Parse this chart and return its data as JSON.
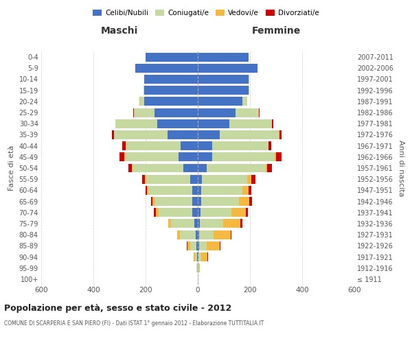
{
  "age_groups": [
    "100+",
    "95-99",
    "90-94",
    "85-89",
    "80-84",
    "75-79",
    "70-74",
    "65-69",
    "60-64",
    "55-59",
    "50-54",
    "45-49",
    "40-44",
    "35-39",
    "30-34",
    "25-29",
    "20-24",
    "15-19",
    "10-14",
    "5-9",
    "0-4"
  ],
  "birth_years": [
    "≤ 1911",
    "1912-1916",
    "1917-1921",
    "1922-1926",
    "1927-1931",
    "1932-1936",
    "1937-1941",
    "1942-1946",
    "1947-1951",
    "1952-1956",
    "1957-1961",
    "1962-1966",
    "1967-1971",
    "1972-1976",
    "1977-1981",
    "1982-1986",
    "1987-1991",
    "1992-1996",
    "1997-2001",
    "2002-2006",
    "2007-2011"
  ],
  "maschi": {
    "celibi": [
      0,
      1,
      2,
      5,
      8,
      12,
      20,
      20,
      20,
      28,
      55,
      75,
      65,
      115,
      155,
      165,
      205,
      205,
      205,
      240,
      200
    ],
    "coniugati": [
      1,
      3,
      8,
      25,
      60,
      90,
      130,
      145,
      170,
      170,
      195,
      205,
      210,
      205,
      160,
      80,
      15,
      2,
      0,
      0,
      0
    ],
    "vedovi": [
      0,
      1,
      5,
      10,
      10,
      10,
      10,
      8,
      5,
      5,
      3,
      2,
      2,
      2,
      0,
      0,
      5,
      0,
      0,
      0,
      0
    ],
    "divorziati": [
      0,
      0,
      0,
      2,
      2,
      2,
      8,
      5,
      5,
      10,
      12,
      18,
      12,
      8,
      2,
      2,
      0,
      0,
      0,
      0,
      0
    ]
  },
  "femmine": {
    "nubili": [
      0,
      1,
      2,
      5,
      5,
      8,
      10,
      12,
      12,
      15,
      35,
      55,
      55,
      85,
      120,
      145,
      170,
      195,
      195,
      230,
      195
    ],
    "coniugate": [
      2,
      3,
      10,
      28,
      55,
      90,
      120,
      145,
      160,
      175,
      225,
      240,
      215,
      225,
      165,
      90,
      20,
      3,
      2,
      0,
      0
    ],
    "vedove": [
      1,
      5,
      25,
      50,
      65,
      65,
      55,
      40,
      22,
      15,
      5,
      5,
      2,
      2,
      0,
      0,
      0,
      0,
      0,
      0,
      0
    ],
    "divorziate": [
      0,
      0,
      2,
      5,
      5,
      8,
      8,
      10,
      10,
      15,
      18,
      22,
      10,
      10,
      5,
      2,
      0,
      0,
      0,
      0,
      0
    ]
  },
  "colors": {
    "celibe": "#4472c4",
    "coniugato": "#c5d9a0",
    "vedovo": "#f5b942",
    "divorziato": "#cc0000"
  },
  "title": "Popolazione per età, sesso e stato civile - 2012",
  "subtitle": "COMUNE DI SCARPERIA E SAN PIERO (FI) - Dati ISTAT 1° gennaio 2012 - Elaborazione TUTTITALIA.IT",
  "xlabel_left": "Maschi",
  "xlabel_right": "Femmine",
  "ylabel_left": "Fasce di età",
  "ylabel_right": "Anni di nascita",
  "xlim": 600,
  "legend_labels": [
    "Celibi/Nubili",
    "Coniugati/e",
    "Vedovi/e",
    "Divorziati/e"
  ]
}
